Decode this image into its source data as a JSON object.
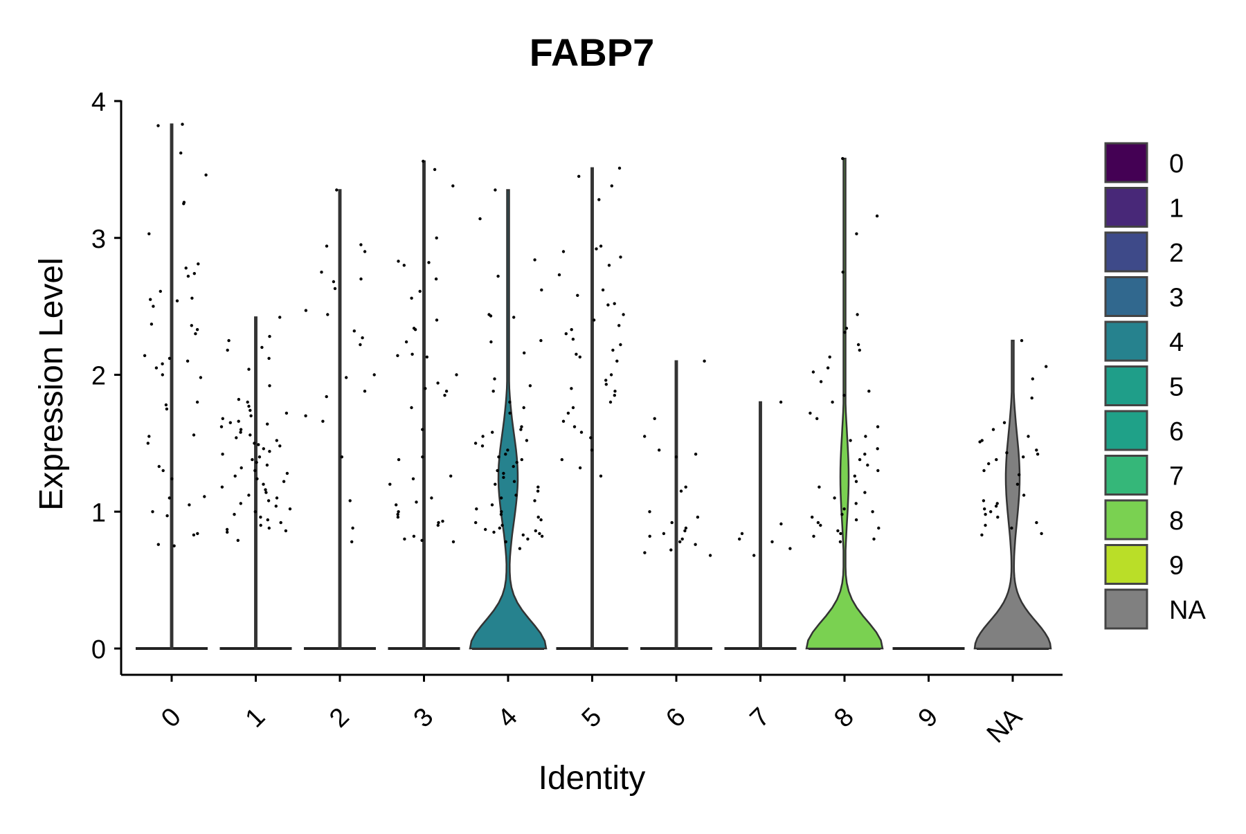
{
  "chart_data": {
    "type": "violin",
    "title": "FABP7",
    "xlabel": "Identity",
    "ylabel": "Expression Level",
    "ylim": [
      -0.2,
      4.05
    ],
    "yticks": [
      0,
      1,
      2,
      3,
      4
    ],
    "categories": [
      "0",
      "1",
      "2",
      "3",
      "4",
      "5",
      "6",
      "7",
      "8",
      "9",
      "NA"
    ],
    "legend_position": "right",
    "groups": [
      {
        "name": "0",
        "color": "#440154",
        "violin_max": 3.83,
        "has_body": false,
        "points": [
          3.83,
          3.82,
          3.62,
          3.46,
          3.26,
          3.25,
          3.03,
          2.81,
          2.78,
          2.74,
          2.72,
          2.61,
          2.56,
          2.55,
          2.54,
          2.5,
          2.37,
          2.36,
          2.33,
          2.3,
          2.14,
          2.12,
          2.1,
          2.08,
          2.05,
          2.0,
          1.98,
          1.8,
          1.78,
          1.75,
          1.56,
          1.55,
          1.5,
          1.33,
          1.3,
          1.24,
          1.11,
          1.1,
          1.05,
          1.0,
          0.97,
          0.84,
          0.83,
          0.76,
          0.75
        ]
      },
      {
        "name": "1",
        "color": "#482878",
        "violin_max": 2.42,
        "has_body": false,
        "points": [
          2.42,
          2.28,
          2.25,
          2.2,
          2.18,
          2.12,
          2.04,
          1.92,
          1.82,
          1.8,
          1.77,
          1.74,
          1.72,
          1.7,
          1.68,
          1.66,
          1.65,
          1.64,
          1.62,
          1.6,
          1.58,
          1.56,
          1.54,
          1.52,
          1.5,
          1.49,
          1.48,
          1.46,
          1.44,
          1.42,
          1.4,
          1.38,
          1.36,
          1.34,
          1.32,
          1.3,
          1.28,
          1.26,
          1.24,
          1.22,
          1.2,
          1.18,
          1.16,
          1.14,
          1.12,
          1.1,
          1.08,
          1.06,
          1.04,
          1.02,
          1.0,
          0.98,
          0.96,
          0.94,
          0.92,
          0.9,
          0.88,
          0.87,
          0.86,
          0.85,
          0.79
        ]
      },
      {
        "name": "2",
        "color": "#3E4A89",
        "violin_max": 3.35,
        "has_body": false,
        "points": [
          3.35,
          2.95,
          2.94,
          2.9,
          2.75,
          2.7,
          2.68,
          2.63,
          2.47,
          2.44,
          2.32,
          2.27,
          2.22,
          2.0,
          1.98,
          1.88,
          1.84,
          1.7,
          1.66,
          1.4,
          1.08,
          0.88,
          0.78
        ]
      },
      {
        "name": "3",
        "color": "#31688E",
        "violin_max": 3.56,
        "has_body": false,
        "points": [
          3.56,
          3.5,
          3.38,
          3.0,
          2.83,
          2.82,
          2.8,
          2.7,
          2.61,
          2.56,
          2.4,
          2.34,
          2.33,
          2.24,
          2.15,
          2.14,
          2.13,
          2.0,
          1.94,
          1.9,
          1.88,
          1.85,
          1.76,
          1.6,
          1.4,
          1.38,
          1.26,
          1.24,
          1.2,
          1.1,
          1.07,
          1.05,
          1.0,
          0.98,
          0.96,
          0.93,
          0.92,
          0.9,
          0.82,
          0.8,
          0.79,
          0.78
        ]
      },
      {
        "name": "4",
        "color": "#26828E",
        "violin_max": 3.35,
        "has_body": true,
        "points": [
          3.35,
          3.14,
          2.84,
          2.72,
          2.62,
          2.44,
          2.43,
          2.42,
          2.25,
          2.24,
          2.16,
          1.97,
          1.92,
          1.88,
          1.8,
          1.76,
          1.72,
          1.62,
          1.6,
          1.58,
          1.55,
          1.52,
          1.5,
          1.48,
          1.45,
          1.42,
          1.4,
          1.38,
          1.36,
          1.33,
          1.3,
          1.28,
          1.25,
          1.22,
          1.2,
          1.18,
          1.15,
          1.12,
          1.1,
          1.08,
          1.05,
          1.02,
          1.0,
          0.98,
          0.96,
          0.94,
          0.92,
          0.9,
          0.88,
          0.87,
          0.86,
          0.85,
          0.84,
          0.83,
          0.82,
          0.8,
          0.78,
          0.73
        ]
      },
      {
        "name": "5",
        "color": "#1F9E89",
        "violin_max": 3.51,
        "has_body": false,
        "points": [
          3.51,
          3.45,
          3.38,
          3.28,
          2.94,
          2.92,
          2.9,
          2.86,
          2.8,
          2.73,
          2.62,
          2.58,
          2.52,
          2.51,
          2.44,
          2.4,
          2.36,
          2.33,
          2.3,
          2.26,
          2.22,
          2.18,
          2.15,
          2.13,
          2.1,
          2.0,
          1.96,
          1.93,
          1.9,
          1.88,
          1.85,
          1.8,
          1.76,
          1.72,
          1.66,
          1.62,
          1.58,
          1.54,
          1.45,
          1.38,
          1.32,
          1.26
        ]
      },
      {
        "name": "6",
        "color": "#1FA188",
        "violin_max": 2.1,
        "has_body": false,
        "points": [
          2.1,
          1.68,
          1.55,
          1.45,
          1.42,
          1.4,
          1.18,
          1.15,
          1.0,
          0.96,
          0.92,
          0.88,
          0.86,
          0.84,
          0.82,
          0.8,
          0.78,
          0.76,
          0.72,
          0.7,
          0.68
        ]
      },
      {
        "name": "7",
        "color": "#35B779",
        "violin_max": 1.8,
        "has_body": false,
        "points": [
          1.8,
          0.91,
          0.84,
          0.8,
          0.78,
          0.73,
          0.68
        ]
      },
      {
        "name": "8",
        "color": "#7AD151",
        "violin_max": 3.58,
        "has_body": true,
        "points": [
          3.58,
          3.16,
          3.03,
          2.75,
          2.44,
          2.34,
          2.31,
          2.22,
          2.18,
          2.13,
          2.05,
          2.02,
          1.95,
          1.88,
          1.85,
          1.8,
          1.72,
          1.68,
          1.62,
          1.55,
          1.52,
          1.46,
          1.42,
          1.38,
          1.34,
          1.3,
          1.26,
          1.22,
          1.18,
          1.14,
          1.1,
          1.06,
          1.02,
          1.0,
          0.98,
          0.96,
          0.94,
          0.92,
          0.9,
          0.88,
          0.86,
          0.84,
          0.82,
          0.8,
          0.78
        ]
      },
      {
        "name": "9",
        "color": "#BADE28",
        "violin_max": 0.0,
        "has_body": false,
        "points": []
      },
      {
        "name": "NA",
        "color": "#808080",
        "violin_max": 2.25,
        "has_body": true,
        "points": [
          2.25,
          2.06,
          1.97,
          1.83,
          1.65,
          1.6,
          1.55,
          1.52,
          1.51,
          1.45,
          1.43,
          1.42,
          1.4,
          1.38,
          1.35,
          1.3,
          1.27,
          1.2,
          1.12,
          1.08,
          1.06,
          1.04,
          1.02,
          1.0,
          0.98,
          0.96,
          0.92,
          0.9,
          0.88,
          0.84,
          0.83
        ]
      }
    ]
  }
}
